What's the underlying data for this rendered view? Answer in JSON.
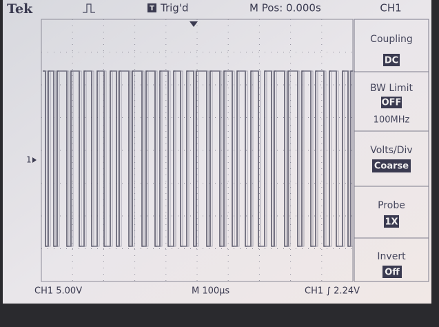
{
  "header": {
    "brand": "Tek",
    "trigger_icon": "T",
    "trigger_status": "Trig'd",
    "position": "M Pos: 0.000s",
    "channel": "CH1",
    "ground_marker": "1"
  },
  "menu": [
    {
      "label": "Coupling",
      "value": "DC"
    },
    {
      "label": "BW Limit",
      "value": "OFF",
      "sub": "100MHz"
    },
    {
      "label": "Volts/Div",
      "value": "Coarse"
    },
    {
      "label": "Probe",
      "value": "1X"
    },
    {
      "label": "Invert",
      "value": "Off"
    }
  ],
  "footer": {
    "channel_scale": "CH1  5.00V",
    "time_scale": "M 100µs",
    "trigger_level": "CH1 ∫ 2.24V"
  }
}
